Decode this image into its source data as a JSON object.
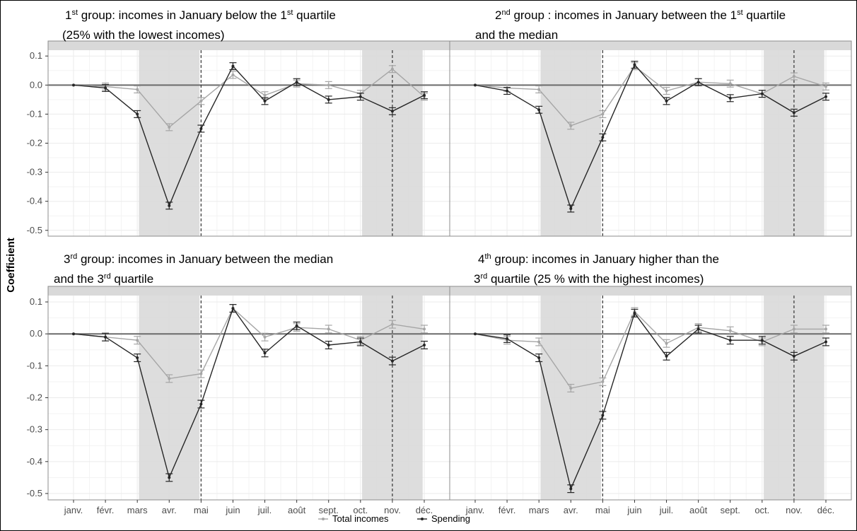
{
  "figure": {
    "ylabel": "Coefficient",
    "legend": [
      {
        "label": "Total incomes",
        "color": "#a6a6a6"
      },
      {
        "label": "Spending",
        "color": "#262626"
      }
    ],
    "colors": {
      "spending": "#262626",
      "incomes": "#a6a6a6",
      "panel_bg": "#ffffff",
      "grid": "#ebebeb",
      "shade": "#d9d9d9"
    }
  },
  "chart_data": [
    {
      "type": "line",
      "title": [
        "1st group: incomes in January below the 1st quartile",
        "(25% with the lowest incomes)"
      ],
      "title_runs": [
        [
          {
            "t": "1",
            "sup": false
          },
          {
            "t": "st",
            "sup": true
          },
          {
            "t": " group: incomes in January below the 1",
            "sup": false
          },
          {
            "t": "st",
            "sup": true
          },
          {
            "t": " quartile",
            "sup": false
          }
        ],
        [
          {
            "t": "(25% with the lowest incomes)",
            "sup": false
          }
        ]
      ],
      "categories": [
        "janv.",
        "févr.",
        "mars",
        "avr.",
        "mai",
        "juin",
        "juil.",
        "août",
        "sept.",
        "oct.",
        "nov.",
        "déc."
      ],
      "yticks": [
        0.1,
        0.0,
        -0.1,
        -0.2,
        -0.3,
        -0.4,
        -0.5
      ],
      "ytick_labels": [
        "0.1",
        "0.0",
        "-0.1",
        "-0.2",
        "-0.3",
        "-0.4",
        "-0.5"
      ],
      "ylim": [
        -0.52,
        0.12
      ],
      "shaded": [
        [
          "mars",
          "mai"
        ],
        [
          "oct.",
          "déc."
        ]
      ],
      "dashed_vlines": [
        "mai",
        "nov."
      ],
      "series": [
        {
          "name": "Total incomes",
          "values": [
            0.0,
            -0.005,
            -0.015,
            -0.145,
            -0.055,
            0.035,
            -0.035,
            0.005,
            0.0,
            -0.03,
            0.055,
            -0.04
          ],
          "err": 0.012
        },
        {
          "name": "Spending",
          "values": [
            0.0,
            -0.01,
            -0.1,
            -0.415,
            -0.15,
            0.065,
            -0.055,
            0.01,
            -0.05,
            -0.04,
            -0.09,
            -0.035
          ],
          "err": 0.012
        }
      ]
    },
    {
      "type": "line",
      "title": [
        "2nd group : incomes in January between the 1st quartile",
        "and the median"
      ],
      "title_runs": [
        [
          {
            "t": "2",
            "sup": false
          },
          {
            "t": "nd",
            "sup": true
          },
          {
            "t": " group : incomes in January between the 1",
            "sup": false
          },
          {
            "t": "st",
            "sup": true
          },
          {
            "t": " quartile",
            "sup": false
          }
        ],
        [
          {
            "t": "and the median",
            "sup": false
          }
        ]
      ],
      "categories": [
        "janv.",
        "févr.",
        "mars",
        "avr.",
        "mai",
        "juin",
        "juil.",
        "août",
        "sept.",
        "oct.",
        "nov.",
        "déc."
      ],
      "yticks": [
        0.1,
        0.0,
        -0.1,
        -0.2,
        -0.3,
        -0.4,
        -0.5
      ],
      "ytick_labels": [
        "0.1",
        "0.0",
        "-0.1",
        "-0.2",
        "-0.3",
        "-0.4",
        "-0.5"
      ],
      "ylim": [
        -0.52,
        0.12
      ],
      "shaded": [
        [
          "mars",
          "mai"
        ],
        [
          "oct.",
          "déc."
        ]
      ],
      "dashed_vlines": [
        "mai",
        "nov."
      ],
      "series": [
        {
          "name": "Total incomes",
          "values": [
            0.0,
            -0.01,
            -0.015,
            -0.14,
            -0.1,
            0.065,
            -0.02,
            0.01,
            0.005,
            -0.03,
            0.03,
            -0.005
          ],
          "err": 0.012
        },
        {
          "name": "Spending",
          "values": [
            0.0,
            -0.02,
            -0.085,
            -0.425,
            -0.18,
            0.07,
            -0.055,
            0.01,
            -0.045,
            -0.03,
            -0.095,
            -0.04
          ],
          "err": 0.012
        }
      ]
    },
    {
      "type": "line",
      "title": [
        "3rd group: incomes in January between the median",
        "and the 3rd quartile"
      ],
      "title_runs": [
        [
          {
            "t": "3",
            "sup": false
          },
          {
            "t": "rd",
            "sup": true
          },
          {
            "t": " group: incomes in January between the median",
            "sup": false
          }
        ],
        [
          {
            "t": "and the 3",
            "sup": false
          },
          {
            "t": "rd",
            "sup": true
          },
          {
            "t": " quartile",
            "sup": false
          }
        ]
      ],
      "categories": [
        "janv.",
        "févr.",
        "mars",
        "avr.",
        "mai",
        "juin",
        "juil.",
        "août",
        "sept.",
        "oct.",
        "nov.",
        "déc."
      ],
      "yticks": [
        0.1,
        0.0,
        -0.1,
        -0.2,
        -0.3,
        -0.4,
        -0.5
      ],
      "ytick_labels": [
        "0.1",
        "0.0",
        "-0.1",
        "-0.2",
        "-0.3",
        "-0.4",
        "-0.5"
      ],
      "ylim": [
        -0.52,
        0.12
      ],
      "shaded": [
        [
          "mars",
          "mai"
        ],
        [
          "oct.",
          "déc."
        ]
      ],
      "dashed_vlines": [
        "mai",
        "nov."
      ],
      "series": [
        {
          "name": "Total incomes",
          "values": [
            0.0,
            -0.01,
            -0.02,
            -0.14,
            -0.125,
            0.08,
            -0.01,
            0.02,
            0.015,
            -0.02,
            0.03,
            0.015
          ],
          "err": 0.012
        },
        {
          "name": "Spending",
          "values": [
            0.0,
            -0.01,
            -0.075,
            -0.45,
            -0.22,
            0.08,
            -0.06,
            0.025,
            -0.035,
            -0.025,
            -0.085,
            -0.035
          ],
          "err": 0.012
        }
      ]
    },
    {
      "type": "line",
      "title": [
        "4th group: incomes in January higher than the",
        "3rd quartile (25 % with the highest incomes)"
      ],
      "title_runs": [
        [
          {
            "t": "4",
            "sup": false
          },
          {
            "t": "th",
            "sup": true
          },
          {
            "t": " group: incomes in January higher than the",
            "sup": false
          }
        ],
        [
          {
            "t": "3",
            "sup": false
          },
          {
            "t": "rd",
            "sup": true
          },
          {
            "t": " quartile (25 % with the highest incomes)",
            "sup": false
          }
        ]
      ],
      "categories": [
        "janv.",
        "févr.",
        "mars",
        "avr.",
        "mai",
        "juin",
        "juil.",
        "août",
        "sept.",
        "oct.",
        "nov.",
        "déc."
      ],
      "yticks": [
        0.1,
        0.0,
        -0.1,
        -0.2,
        -0.3,
        -0.4,
        -0.5
      ],
      "ytick_labels": [
        "0.1",
        "0.0",
        "-0.1",
        "-0.2",
        "-0.3",
        "-0.4",
        "-0.5"
      ],
      "ylim": [
        -0.52,
        0.12
      ],
      "shaded": [
        [
          "mars",
          "mai"
        ],
        [
          "oct.",
          "déc."
        ]
      ],
      "dashed_vlines": [
        "mai",
        "nov."
      ],
      "series": [
        {
          "name": "Total incomes",
          "values": [
            0.0,
            -0.02,
            -0.025,
            -0.17,
            -0.15,
            0.07,
            -0.03,
            0.02,
            0.01,
            -0.025,
            0.015,
            0.015
          ],
          "err": 0.012
        },
        {
          "name": "Spending",
          "values": [
            0.0,
            -0.015,
            -0.075,
            -0.485,
            -0.255,
            0.065,
            -0.07,
            0.015,
            -0.02,
            -0.02,
            -0.07,
            -0.025
          ],
          "err": 0.012
        }
      ]
    }
  ]
}
